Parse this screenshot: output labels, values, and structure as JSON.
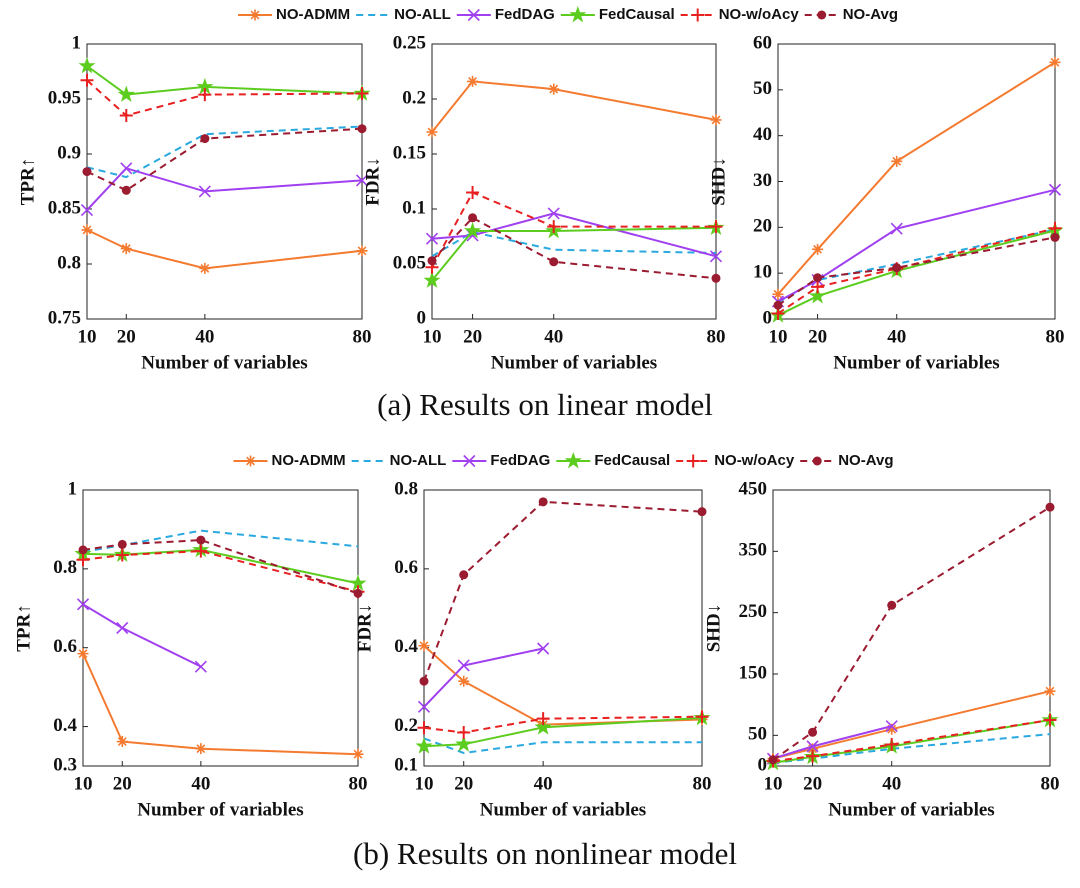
{
  "captions": [
    "(a) Results on linear model",
    "(b) Results on nonlinear model"
  ],
  "chart_data": [
    {
      "type": "line",
      "legend": "top",
      "ylabel": "TPR↑",
      "xlabel": "Number of variables",
      "x": [
        10,
        20,
        40,
        80
      ],
      "xlim": [
        10,
        80
      ],
      "xticks": [
        10,
        20,
        40,
        80
      ],
      "ylim": [
        0.75,
        1
      ],
      "yticks": [
        0.75,
        0.8,
        0.85,
        0.9,
        0.95,
        1
      ],
      "series": [
        {
          "name": "NO-ADMM",
          "color": "#f47a30",
          "dash": false,
          "marker": "asterisk",
          "values": [
            0.831,
            0.814,
            0.796,
            0.812
          ]
        },
        {
          "name": "NO-ALL",
          "color": "#2aa9e0",
          "dash": true,
          "marker": "none",
          "values": [
            0.888,
            0.879,
            0.918,
            0.925
          ]
        },
        {
          "name": "FedDAG",
          "color": "#a040f0",
          "dash": false,
          "marker": "x",
          "values": [
            0.849,
            0.887,
            0.866,
            0.876
          ]
        },
        {
          "name": "FedCausal",
          "color": "#5ccc1f",
          "dash": false,
          "marker": "star",
          "values": [
            0.98,
            0.954,
            0.961,
            0.955
          ]
        },
        {
          "name": "NO-w/oAcy",
          "color": "#e82020",
          "dash": true,
          "marker": "plus",
          "values": [
            0.967,
            0.935,
            0.954,
            0.955
          ]
        },
        {
          "name": "NO-Avg",
          "color": "#9b1b30",
          "dash": true,
          "marker": "circle",
          "values": [
            0.884,
            0.867,
            0.914,
            0.923
          ]
        }
      ]
    },
    {
      "type": "line",
      "ylabel": "FDR↓",
      "xlabel": "Number of variables",
      "x": [
        10,
        20,
        40,
        80
      ],
      "xlim": [
        10,
        80
      ],
      "xticks": [
        10,
        20,
        40,
        80
      ],
      "ylim": [
        0,
        0.25
      ],
      "yticks": [
        0,
        0.05,
        0.1,
        0.15,
        0.2,
        0.25
      ],
      "series": [
        {
          "name": "NO-ADMM",
          "color": "#f47a30",
          "dash": false,
          "marker": "asterisk",
          "values": [
            0.17,
            0.216,
            0.209,
            0.181
          ]
        },
        {
          "name": "NO-ALL",
          "color": "#2aa9e0",
          "dash": true,
          "marker": "none",
          "values": [
            0.057,
            0.079,
            0.063,
            0.06
          ]
        },
        {
          "name": "FedDAG",
          "color": "#a040f0",
          "dash": false,
          "marker": "x",
          "values": [
            0.073,
            0.076,
            0.096,
            0.057
          ]
        },
        {
          "name": "FedCausal",
          "color": "#5ccc1f",
          "dash": false,
          "marker": "star",
          "values": [
            0.035,
            0.08,
            0.08,
            0.083
          ]
        },
        {
          "name": "NO-w/oAcy",
          "color": "#e82020",
          "dash": true,
          "marker": "plus",
          "values": [
            0.047,
            0.115,
            0.084,
            0.084
          ]
        },
        {
          "name": "NO-Avg",
          "color": "#9b1b30",
          "dash": true,
          "marker": "circle",
          "values": [
            0.053,
            0.092,
            0.052,
            0.037
          ]
        }
      ]
    },
    {
      "type": "line",
      "ylabel": "SHD↓",
      "xlabel": "Number of variables",
      "x": [
        10,
        20,
        40,
        80
      ],
      "xlim": [
        10,
        80
      ],
      "xticks": [
        10,
        20,
        40,
        80
      ],
      "ylim": [
        0,
        60
      ],
      "yticks": [
        0,
        10,
        20,
        30,
        40,
        50,
        60
      ],
      "series": [
        {
          "name": "NO-ADMM",
          "color": "#f47a30",
          "dash": false,
          "marker": "asterisk",
          "values": [
            5.4,
            15.2,
            34.4,
            56
          ]
        },
        {
          "name": "NO-ALL",
          "color": "#2aa9e0",
          "dash": true,
          "marker": "none",
          "values": [
            3.6,
            8.5,
            12,
            19.5
          ]
        },
        {
          "name": "FedDAG",
          "color": "#a040f0",
          "dash": false,
          "marker": "x",
          "values": [
            3.8,
            8.5,
            19.7,
            28.2
          ]
        },
        {
          "name": "FedCausal",
          "color": "#5ccc1f",
          "dash": false,
          "marker": "star",
          "values": [
            0.8,
            5,
            10.5,
            19.3
          ]
        },
        {
          "name": "NO-w/oAcy",
          "color": "#e82020",
          "dash": true,
          "marker": "plus",
          "values": [
            1.2,
            7,
            11,
            19.8
          ]
        },
        {
          "name": "NO-Avg",
          "color": "#9b1b30",
          "dash": true,
          "marker": "circle",
          "values": [
            3,
            9,
            11.2,
            17.8
          ]
        }
      ]
    },
    {
      "type": "line",
      "legend": "top",
      "ylabel": "TPR↑",
      "xlabel": "Number of variables",
      "x": [
        10,
        20,
        40,
        80
      ],
      "xlim": [
        10,
        80
      ],
      "xticks": [
        10,
        20,
        40,
        80
      ],
      "ylim": [
        0.3,
        1
      ],
      "yticks": [
        0.3,
        0.4,
        0.6,
        0.8,
        1
      ],
      "series": [
        {
          "name": "NO-ADMM",
          "color": "#f47a30",
          "dash": false,
          "marker": "asterisk",
          "values": [
            0.585,
            0.362,
            0.344,
            0.33
          ]
        },
        {
          "name": "NO-ALL",
          "color": "#2aa9e0",
          "dash": true,
          "marker": "none",
          "values": [
            0.843,
            0.86,
            0.897,
            0.857
          ]
        },
        {
          "name": "FedDAG",
          "color": "#a040f0",
          "dash": false,
          "marker": "x",
          "values": [
            0.71,
            0.65,
            0.552,
            null
          ]
        },
        {
          "name": "FedCausal",
          "color": "#5ccc1f",
          "dash": false,
          "marker": "star",
          "values": [
            0.838,
            0.836,
            0.848,
            0.763
          ]
        },
        {
          "name": "NO-w/oAcy",
          "color": "#e82020",
          "dash": true,
          "marker": "plus",
          "values": [
            0.823,
            0.835,
            0.845,
            0.742
          ]
        },
        {
          "name": "NO-Avg",
          "color": "#9b1b30",
          "dash": true,
          "marker": "circle",
          "values": [
            0.848,
            0.862,
            0.873,
            0.738
          ]
        }
      ]
    },
    {
      "type": "line",
      "ylabel": "FDR↓",
      "xlabel": "Number of variables",
      "x": [
        10,
        20,
        40,
        80
      ],
      "xlim": [
        10,
        80
      ],
      "xticks": [
        10,
        20,
        40,
        80
      ],
      "ylim": [
        0.1,
        0.8
      ],
      "yticks": [
        0.1,
        0.2,
        0.4,
        0.6,
        0.8
      ],
      "series": [
        {
          "name": "NO-ADMM",
          "color": "#f47a30",
          "dash": false,
          "marker": "asterisk",
          "values": [
            0.405,
            0.315,
            0.205,
            0.218
          ]
        },
        {
          "name": "NO-ALL",
          "color": "#2aa9e0",
          "dash": true,
          "marker": "none",
          "values": [
            0.17,
            0.133,
            0.16,
            0.16
          ]
        },
        {
          "name": "FedDAG",
          "color": "#a040f0",
          "dash": false,
          "marker": "x",
          "values": [
            0.25,
            0.355,
            0.398,
            null
          ]
        },
        {
          "name": "FedCausal",
          "color": "#5ccc1f",
          "dash": false,
          "marker": "star",
          "values": [
            0.15,
            0.155,
            0.198,
            0.222
          ]
        },
        {
          "name": "NO-w/oAcy",
          "color": "#e82020",
          "dash": true,
          "marker": "plus",
          "values": [
            0.197,
            0.185,
            0.22,
            0.225
          ]
        },
        {
          "name": "NO-Avg",
          "color": "#9b1b30",
          "dash": true,
          "marker": "circle",
          "values": [
            0.315,
            0.585,
            0.77,
            0.745
          ]
        }
      ]
    },
    {
      "type": "line",
      "ylabel": "SHD↓",
      "xlabel": "Number of variables",
      "x": [
        10,
        20,
        40,
        80
      ],
      "xlim": [
        10,
        80
      ],
      "xticks": [
        10,
        20,
        40,
        80
      ],
      "ylim": [
        0,
        450
      ],
      "yticks": [
        0,
        50,
        150,
        250,
        350,
        450
      ],
      "series": [
        {
          "name": "NO-ADMM",
          "color": "#f47a30",
          "dash": false,
          "marker": "asterisk",
          "values": [
            12,
            28,
            60,
            122
          ]
        },
        {
          "name": "NO-ALL",
          "color": "#2aa9e0",
          "dash": true,
          "marker": "none",
          "values": [
            5,
            12,
            28,
            52
          ]
        },
        {
          "name": "FedDAG",
          "color": "#a040f0",
          "dash": false,
          "marker": "x",
          "values": [
            12,
            32,
            65,
            null
          ]
        },
        {
          "name": "FedCausal",
          "color": "#5ccc1f",
          "dash": false,
          "marker": "star",
          "values": [
            5,
            15,
            32,
            75
          ]
        },
        {
          "name": "NO-w/oAcy",
          "color": "#e82020",
          "dash": true,
          "marker": "plus",
          "values": [
            8,
            16,
            35,
            75
          ]
        },
        {
          "name": "NO-Avg",
          "color": "#9b1b30",
          "dash": true,
          "marker": "circle",
          "values": [
            10,
            55,
            262,
            422
          ]
        }
      ]
    }
  ]
}
